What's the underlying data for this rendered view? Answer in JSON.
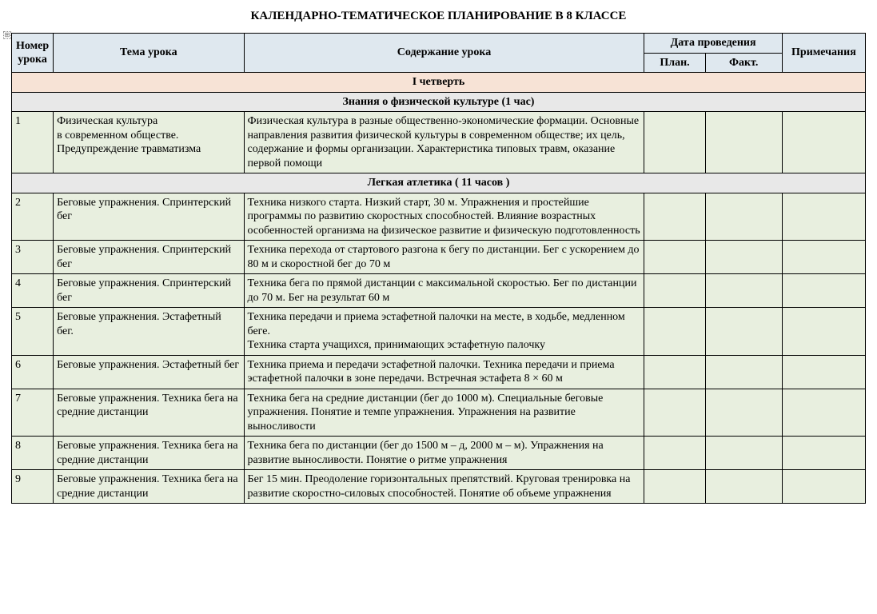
{
  "title": "КАЛЕНДАРНО-ТЕМАТИЧЕСКОЕ ПЛАНИРОВАНИЕ В 8 КЛАССЕ",
  "anchor_glyph": "⊞",
  "columns": {
    "num": "Номер урока",
    "topic": "Тема урока",
    "content": "Содержание урока",
    "date_group": "Дата проведения",
    "plan": "План.",
    "fact": "Факт.",
    "notes": "Примечания"
  },
  "colors": {
    "header_bg": "#dfe8ef",
    "quarter_bg": "#f7e3d6",
    "section_bg": "#e8e8e8",
    "data_bg": "#e8efdf",
    "border": "#000000",
    "text": "#000000",
    "page_bg": "#ffffff"
  },
  "rows": [
    {
      "type": "quarter",
      "label": "I четверть"
    },
    {
      "type": "section",
      "label": "Знания о физической культуре (1 час)"
    },
    {
      "type": "data",
      "num": "1",
      "topic": "Физическая культура\nв современном обществе. Предупреждение травматизма",
      "content": "Физическая культура в разные общественно-экономические формации. Основные направления развития физической культуры в современном обществе; их цель, содержание и формы организации. Характеристика типовых травм, оказание первой помощи",
      "plan": "",
      "fact": "",
      "notes": ""
    },
    {
      "type": "section",
      "label": "Легкая атлетика ( 11 часов )"
    },
    {
      "type": "data",
      "num": "2",
      "topic": "Беговые упражнения. Спринтерский бег",
      "content": "Техника низкого старта. Низкий старт, 30 м. Упражнения и простейшие программы по развитию скоростных способностей. Влияние возрастных особенностей организма на физическое развитие и физическую подготовленность",
      "plan": "",
      "fact": "",
      "notes": ""
    },
    {
      "type": "data",
      "num": "3",
      "topic": "Беговые упражнения. Спринтерский бег",
      "content": "Техника перехода от стартового разгона к бегу по дистанции. Бег с ускорением до 80 м и скоростной бег до 70 м",
      "plan": "",
      "fact": "",
      "notes": ""
    },
    {
      "type": "data",
      "num": "4",
      "topic": "Беговые упражнения. Спринтерский бег",
      "content": "Техника бега по прямой дистанции с максимальной скоростью. Бег по дистанции\nдо 70 м. Бег на результат 60 м",
      "plan": "",
      "fact": "",
      "notes": ""
    },
    {
      "type": "data",
      "num": "5",
      "topic": "Беговые упражнения. Эстафетный бег.",
      "content": "Техника передачи и приема эстафетной палочки на месте, в ходьбе, медленном беге.\nТехника старта учащихся, принимающих эстафетную палочку",
      "plan": "",
      "fact": "",
      "notes": ""
    },
    {
      "type": "data",
      "num": "6",
      "topic": "Беговые упражнения. Эстафетный бег",
      "content": "Техника приема и передачи эстафетной палочки. Техника передачи и приема эстафетной палочки в зоне передачи. Встречная эстафета 8 × 60 м",
      "plan": "",
      "fact": "",
      "notes": ""
    },
    {
      "type": "data",
      "num": "7",
      "topic": "Беговые упражнения. Техника бега на средние дистанции",
      "content": "Техника бега на средние дистанции (бег до 1000 м). Специальные беговые упражнения. Понятие и темпе упражнения. Упражнения на развитие выносливости",
      "plan": "",
      "fact": "",
      "notes": ""
    },
    {
      "type": "data",
      "num": "8",
      "topic": "Беговые упражнения. Техника бега на средние дистанции",
      "content": "Техника бега по дистанции (бег до 1500 м – д, 2000 м – м). Упражнения на развитие выносливости. Понятие о ритме упражнения",
      "plan": "",
      "fact": "",
      "notes": ""
    },
    {
      "type": "data",
      "num": "9",
      "topic": "Беговые упражнения. Техника бега на средние дистанции",
      "content": "Бег 15 мин. Преодоление горизонтальных препятствий. Круговая тренировка на развитие скоростно-силовых способностей. Понятие об объеме упражнения",
      "plan": "",
      "fact": "",
      "notes": ""
    }
  ]
}
